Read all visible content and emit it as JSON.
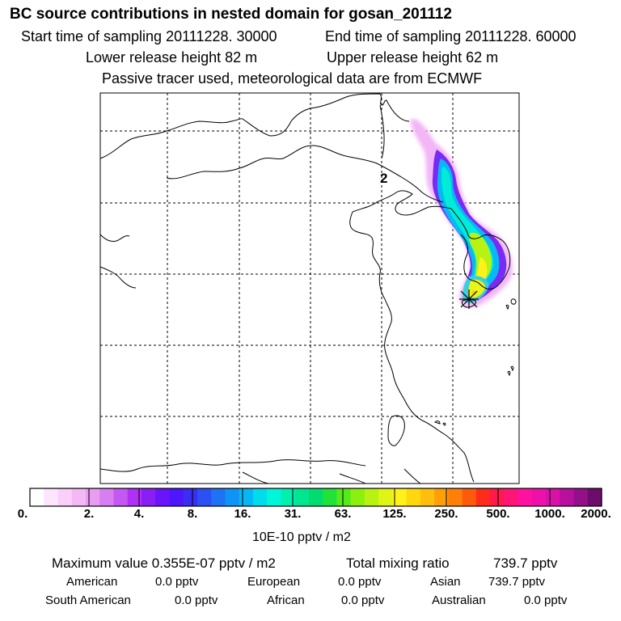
{
  "header": {
    "title": "BC  source contributions in nested domain for gosan_201112",
    "start_label": "Start time of sampling 20111228. 30000",
    "end_label": "End time of sampling 20111228. 60000",
    "lower_label": "Lower release height   82 m",
    "upper_label": "Upper release height   62 m",
    "tracer_label": "Passive tracer used, meteorological data are from ECMWF"
  },
  "map": {
    "site_marker_label": "2",
    "gridlines": "dashed",
    "colors": {
      "land": "#ffffff",
      "coast": "#000000",
      "frame": "#000000"
    }
  },
  "colorbar": {
    "tick_labels": [
      "0.",
      "2.",
      "4.",
      "8.",
      "16.",
      "31.",
      "63.",
      "125.",
      "250.",
      "500.",
      "1000.",
      "2000."
    ],
    "units": "10E-10 pptv / m2",
    "colors": [
      "#ffffff",
      "#fde6fd",
      "#fad0fb",
      "#f5b8f7",
      "#e89df0",
      "#d77ff0",
      "#c557f2",
      "#b030f5",
      "#8a1ff5",
      "#6a14fb",
      "#4c18fb",
      "#3a2ef5",
      "#2b50f5",
      "#1e72f5",
      "#0f93f6",
      "#06b7f3",
      "#00dcec",
      "#00f6d8",
      "#00f0b0",
      "#00e690",
      "#00dc70",
      "#20e33a",
      "#56ea1a",
      "#8cf00f",
      "#b8f210",
      "#e0f515",
      "#fff21a",
      "#ffd80f",
      "#ffbf0a",
      "#ffa008",
      "#ff8008",
      "#ff5a0c",
      "#ff2c1c",
      "#ff1a4a",
      "#ff1478",
      "#ff12a0",
      "#ee10aa",
      "#d811a8",
      "#b8109e",
      "#941088",
      "#6e0c6e"
    ]
  },
  "stats": {
    "maximum": "Maximum value  0.355E-07 pptv / m2",
    "total_label": "Total mixing ratio",
    "total_value": "739.7 pptv"
  },
  "sources": {
    "american_label": "American",
    "american_value": "0.0 pptv",
    "european_label": "European",
    "european_value": "0.0 pptv",
    "asian_label": "Asian",
    "asian_value": "739.7 pptv",
    "south_american_label": "South American",
    "south_american_value": "0.0 pptv",
    "african_label": "African",
    "african_value": "0.0 pptv",
    "australian_label": "Australian",
    "australian_value": "0.0 pptv"
  }
}
